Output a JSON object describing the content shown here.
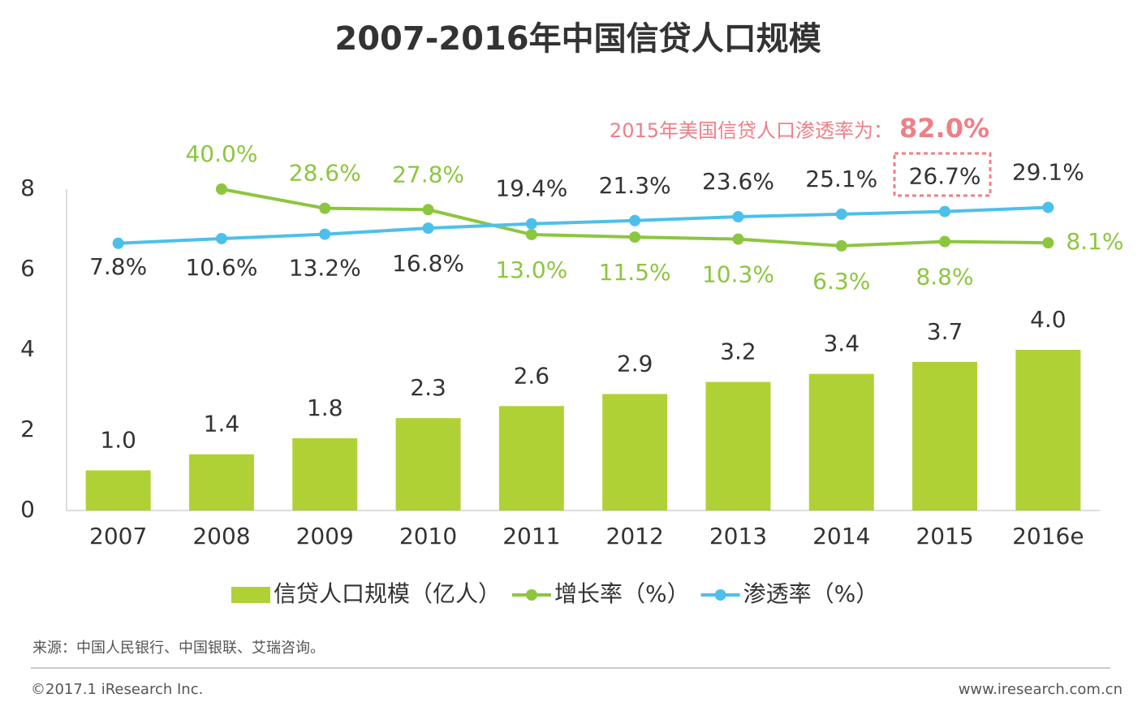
{
  "chart_data": {
    "type": "bar_line",
    "title": "2007-2016年中国信贷人口规模",
    "categories": [
      "2007",
      "2008",
      "2009",
      "2010",
      "2011",
      "2012",
      "2013",
      "2014",
      "2015",
      "2016e"
    ],
    "ylim": [
      0,
      8
    ],
    "yticks": [
      0,
      2,
      4,
      6,
      8
    ],
    "y2lim": [
      -151,
      40
    ],
    "series": [
      {
        "name": "信贷人口规模（亿人）",
        "type": "bar",
        "color": "#b0d136",
        "values": [
          1.0,
          1.4,
          1.8,
          2.3,
          2.6,
          2.9,
          3.2,
          3.4,
          3.7,
          4.0
        ],
        "value_labels": [
          "1.0",
          "1.4",
          "1.8",
          "2.3",
          "2.6",
          "2.9",
          "3.2",
          "3.4",
          "3.7",
          "4.0"
        ]
      },
      {
        "name": "增长率（%）",
        "type": "line",
        "axis": "y2",
        "color": "#8cc63f",
        "values": [
          null,
          40.0,
          28.6,
          27.8,
          13.0,
          11.5,
          10.3,
          6.3,
          8.8,
          8.1
        ],
        "value_labels": [
          null,
          "40.0%",
          "28.6%",
          "27.8%",
          "13.0%",
          "11.5%",
          "10.3%",
          "6.3%",
          "8.8%",
          "8.1%"
        ]
      },
      {
        "name": "渗透率（%）",
        "type": "line",
        "axis": "y2",
        "color": "#4dc0ea",
        "values": [
          7.8,
          10.6,
          13.2,
          16.8,
          19.4,
          21.3,
          23.6,
          25.1,
          26.7,
          29.1
        ],
        "value_labels": [
          "7.8%",
          "10.6%",
          "13.2%",
          "16.8%",
          "19.4%",
          "21.3%",
          "23.6%",
          "25.1%",
          "26.7%",
          "29.1%"
        ]
      }
    ],
    "annotation": {
      "text": "2015年美国信贷人口渗透率为：",
      "value": 82.0,
      "value_label": "82.0%"
    },
    "source": "来源：中国人民银行、中国银联、艾瑞咨询。",
    "copyright": "©2017.1 iResearch Inc.",
    "website": "www.iresearch.com.cn"
  }
}
